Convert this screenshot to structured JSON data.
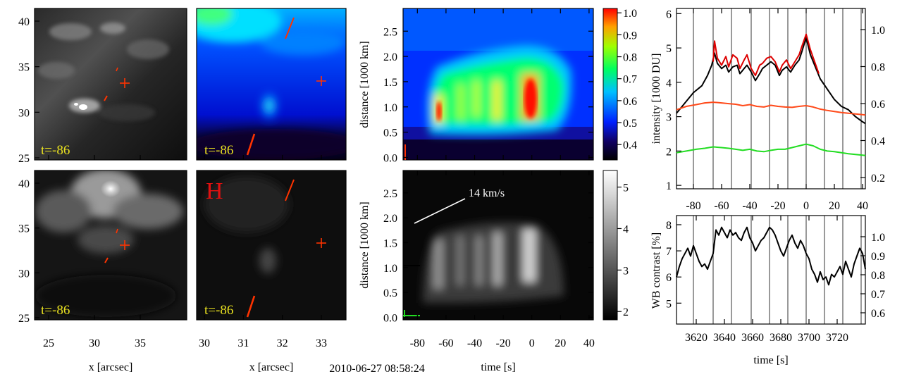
{
  "figure_timestamp": "2010-06-27 08:58:24",
  "colors": {
    "red_trace": "#dd0000",
    "orange_trace": "#ff4a1a",
    "green_trace": "#22dd22",
    "black_trace": "#000000",
    "time_label": "#e8e020",
    "marker": "#ff3300",
    "letter_H": "#e01010"
  },
  "images": {
    "panel_1": {
      "time_label": "t=-86",
      "kind": "grayscale"
    },
    "panel_2": {
      "time_label": "t=-86",
      "kind": "colormap"
    },
    "panel_3": {
      "time_label": "t=-86",
      "kind": "grayscale"
    },
    "panel_4": {
      "time_label": "t=-86",
      "kind": "grayscale",
      "letter": "H"
    },
    "col1_xticks": [
      "25",
      "30",
      "35"
    ],
    "col1_yticks": [
      "40",
      "35",
      "30",
      "25"
    ],
    "col1_xlabel": "x [arcsec]",
    "col2_xticks": [
      "30",
      "31",
      "32",
      "33"
    ],
    "col2_xlabel": "x [arcsec]"
  },
  "chart_data": [
    {
      "type": "heatmap",
      "id": "xt_color",
      "ylabel": "distance [1000 km]",
      "yticks": [
        "0.0",
        "0.5",
        "1.0",
        "1.5",
        "2.0",
        "2.5"
      ],
      "xlim": [
        -90,
        43
      ],
      "ylim": [
        -0.05,
        2.95
      ],
      "colorbar_ticks": [
        "1.0",
        "0.9",
        "0.8",
        "0.7",
        "0.6",
        "0.5",
        "0.4"
      ],
      "colorbar_range": [
        0.33,
        1.02
      ]
    },
    {
      "type": "heatmap",
      "id": "xt_gray",
      "ylabel": "distance [1000 km]",
      "xlabel": "time [s]",
      "xticks": [
        "-80",
        "-60",
        "-40",
        "-20",
        "0",
        "20",
        "40"
      ],
      "yticks": [
        "0.0",
        "0.5",
        "1.0",
        "1.5",
        "2.0",
        "2.5"
      ],
      "xlim": [
        -90,
        43
      ],
      "ylim": [
        -0.05,
        2.95
      ],
      "annotation": "14 km/s",
      "colorbar_ticks": [
        "5",
        "4",
        "3",
        "2"
      ],
      "colorbar_range": [
        1.8,
        5.4
      ]
    },
    {
      "type": "line",
      "id": "intensity",
      "ylabel": "intensity [1000 DU]",
      "xticks": [
        "-80",
        "-60",
        "-40",
        "-20",
        "0",
        "20",
        "40"
      ],
      "xlim": [
        -92,
        42
      ],
      "ylim": [
        0.9,
        6.15
      ],
      "yticks_left": [
        "1",
        "2",
        "3",
        "4",
        "5",
        "6"
      ],
      "yticks_right": [
        "1.0",
        "0.8",
        "0.6",
        "0.4",
        "0.2"
      ],
      "vertical_lines_t": [
        -80,
        -66,
        -53,
        -39,
        -26,
        -13,
        0,
        13,
        26,
        39
      ],
      "series": [
        {
          "name": "black",
          "x": [
            -92,
            -86,
            -80,
            -74,
            -70,
            -67,
            -65,
            -63,
            -60,
            -57,
            -55,
            -52,
            -49,
            -47,
            -44,
            -42,
            -39,
            -36,
            -33,
            -31,
            -28,
            -25,
            -22,
            -19,
            -17,
            -14,
            -11,
            -8,
            -5,
            -3,
            0,
            3,
            6,
            10,
            15,
            20,
            25,
            30,
            35,
            40,
            42
          ],
          "y": [
            3.1,
            3.4,
            3.7,
            3.9,
            4.2,
            4.5,
            4.85,
            4.55,
            4.4,
            4.5,
            4.3,
            4.45,
            4.5,
            4.25,
            4.4,
            4.5,
            4.3,
            4.05,
            4.25,
            4.4,
            4.5,
            4.6,
            4.5,
            4.2,
            4.35,
            4.45,
            4.3,
            4.5,
            4.65,
            4.9,
            5.3,
            4.8,
            4.5,
            4.1,
            3.8,
            3.5,
            3.3,
            3.2,
            3.0,
            2.85,
            2.8
          ]
        },
        {
          "name": "red",
          "x": [
            -66,
            -65,
            -63,
            -60,
            -57,
            -55,
            -52,
            -49,
            -47,
            -44,
            -42,
            -39,
            -36,
            -33,
            -31,
            -28,
            -25,
            -22,
            -19,
            -17,
            -14,
            -11,
            -8,
            -5,
            -3,
            0,
            3,
            6,
            9
          ],
          "y": [
            4.6,
            5.2,
            4.7,
            4.5,
            4.75,
            4.45,
            4.8,
            4.7,
            4.4,
            4.65,
            4.8,
            4.4,
            4.2,
            4.5,
            4.55,
            4.7,
            4.75,
            4.6,
            4.3,
            4.5,
            4.65,
            4.4,
            4.6,
            4.8,
            5.05,
            5.4,
            4.95,
            4.6,
            4.25
          ]
        },
        {
          "name": "orange",
          "x": [
            -92,
            -85,
            -78,
            -72,
            -66,
            -60,
            -55,
            -50,
            -45,
            -40,
            -35,
            -30,
            -25,
            -20,
            -15,
            -10,
            -5,
            0,
            5,
            10,
            15,
            20,
            25,
            30,
            35,
            40,
            42
          ],
          "y": [
            3.2,
            3.3,
            3.35,
            3.4,
            3.42,
            3.4,
            3.38,
            3.36,
            3.32,
            3.35,
            3.3,
            3.28,
            3.33,
            3.3,
            3.28,
            3.27,
            3.3,
            3.32,
            3.28,
            3.22,
            3.18,
            3.15,
            3.12,
            3.1,
            3.08,
            3.06,
            3.05
          ]
        },
        {
          "name": "green",
          "x": [
            -92,
            -85,
            -78,
            -72,
            -66,
            -60,
            -55,
            -50,
            -45,
            -40,
            -35,
            -30,
            -25,
            -20,
            -15,
            -10,
            -5,
            0,
            5,
            10,
            15,
            20,
            25,
            30,
            35,
            40,
            42
          ],
          "y": [
            1.95,
            2.0,
            2.05,
            2.08,
            2.12,
            2.1,
            2.08,
            2.05,
            2.02,
            2.05,
            2.0,
            1.98,
            2.02,
            2.05,
            2.05,
            2.1,
            2.15,
            2.2,
            2.15,
            2.05,
            2.0,
            1.98,
            1.95,
            1.92,
            1.9,
            1.88,
            1.87
          ]
        }
      ]
    },
    {
      "type": "line",
      "id": "wb_contrast",
      "ylabel": "WB contrast [%]",
      "xlabel": "time [s]",
      "xticks": [
        "3620",
        "3640",
        "3660",
        "3680",
        "3700",
        "3720"
      ],
      "xlim": [
        3606,
        3740
      ],
      "ylim": [
        4.2,
        8.35
      ],
      "yticks_left": [
        "8",
        "7",
        "6",
        "5"
      ],
      "yticks_right": [
        "1.0",
        "0.9",
        "0.8",
        "0.7",
        "0.6"
      ],
      "vertical_lines_t": [
        3618,
        3632,
        3645,
        3659,
        3672,
        3685,
        3698,
        3711,
        3724,
        3737
      ],
      "series": [
        {
          "name": "black",
          "x": [
            3606,
            3608,
            3610,
            3612,
            3614,
            3616,
            3618,
            3620,
            3622,
            3624,
            3626,
            3628,
            3630,
            3632,
            3634,
            3636,
            3638,
            3640,
            3642,
            3644,
            3646,
            3648,
            3650,
            3652,
            3654,
            3656,
            3658,
            3660,
            3662,
            3664,
            3666,
            3668,
            3670,
            3672,
            3674,
            3676,
            3678,
            3680,
            3682,
            3684,
            3686,
            3688,
            3690,
            3692,
            3694,
            3696,
            3698,
            3700,
            3702,
            3704,
            3706,
            3708,
            3710,
            3712,
            3714,
            3716,
            3718,
            3720,
            3722,
            3724,
            3726,
            3728,
            3730,
            3732,
            3734,
            3736,
            3738,
            3740
          ],
          "y": [
            6.0,
            6.4,
            6.7,
            6.9,
            7.1,
            6.8,
            7.2,
            6.9,
            6.6,
            6.4,
            6.5,
            6.3,
            6.6,
            6.9,
            7.8,
            7.6,
            7.9,
            7.7,
            7.5,
            7.8,
            7.6,
            7.7,
            7.5,
            7.4,
            7.7,
            7.9,
            7.5,
            7.3,
            7.0,
            7.2,
            7.4,
            7.5,
            7.7,
            7.9,
            7.8,
            7.6,
            7.3,
            7.0,
            6.8,
            7.1,
            7.4,
            7.6,
            7.3,
            7.1,
            7.4,
            7.2,
            6.9,
            6.7,
            6.3,
            6.1,
            5.8,
            6.2,
            5.9,
            6.0,
            5.7,
            6.1,
            6.0,
            6.2,
            6.4,
            6.1,
            6.6,
            6.3,
            6.0,
            6.5,
            6.8,
            7.1,
            6.9,
            6.3
          ]
        }
      ]
    }
  ]
}
